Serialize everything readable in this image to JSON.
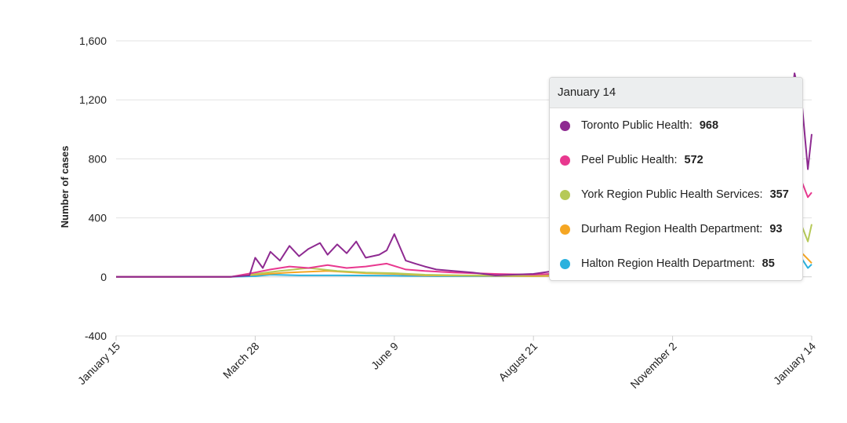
{
  "chart_data": {
    "type": "line",
    "ylabel": "Number of cases",
    "xlabel": "",
    "ylim": [
      -400,
      1600
    ],
    "yticks": [
      1600,
      1200,
      800,
      400,
      0,
      -400
    ],
    "ytick_labels": [
      "1,600",
      "1,200",
      "800",
      "400",
      "0",
      "-400"
    ],
    "xtick_labels": [
      "January 15",
      "March 28",
      "June 9",
      "August 21",
      "November 2",
      "January 14"
    ],
    "grid": true,
    "legend": "none",
    "series": [
      {
        "name": "Toronto Public Health",
        "color": "#8e2a91",
        "x": [
          "2020-01-15",
          "2020-03-15",
          "2020-03-25",
          "2020-03-28",
          "2020-04-01",
          "2020-04-05",
          "2020-04-10",
          "2020-04-15",
          "2020-04-20",
          "2020-04-25",
          "2020-05-01",
          "2020-05-05",
          "2020-05-10",
          "2020-05-15",
          "2020-05-20",
          "2020-05-25",
          "2020-06-01",
          "2020-06-05",
          "2020-06-09",
          "2020-06-15",
          "2020-06-20",
          "2020-06-25",
          "2020-07-01",
          "2020-07-10",
          "2020-07-20",
          "2020-08-01",
          "2020-08-10",
          "2020-08-21",
          "2020-09-01",
          "2020-09-15",
          "2020-10-01",
          "2020-10-15",
          "2020-11-01",
          "2020-11-15",
          "2020-12-01",
          "2020-12-15",
          "2021-01-01",
          "2021-01-05",
          "2021-01-09",
          "2021-01-12",
          "2021-01-14"
        ],
        "values": [
          0,
          0,
          10,
          130,
          60,
          170,
          110,
          210,
          140,
          190,
          230,
          150,
          220,
          160,
          240,
          130,
          150,
          180,
          290,
          110,
          90,
          70,
          50,
          40,
          30,
          10,
          15,
          20,
          40,
          80,
          200,
          250,
          260,
          400,
          450,
          600,
          950,
          1380,
          1160,
          730,
          968
        ]
      },
      {
        "name": "Peel Public Health",
        "color": "#e8388f",
        "x": [
          "2020-01-15",
          "2020-03-15",
          "2020-03-28",
          "2020-04-05",
          "2020-04-15",
          "2020-04-25",
          "2020-05-05",
          "2020-05-15",
          "2020-05-25",
          "2020-06-05",
          "2020-06-15",
          "2020-06-25",
          "2020-07-10",
          "2020-08-01",
          "2020-08-21",
          "2020-09-15",
          "2020-10-15",
          "2020-11-15",
          "2020-12-15",
          "2021-01-01",
          "2021-01-09",
          "2021-01-12",
          "2021-01-14"
        ],
        "values": [
          0,
          0,
          30,
          50,
          70,
          60,
          80,
          60,
          70,
          90,
          50,
          40,
          30,
          20,
          15,
          30,
          120,
          300,
          400,
          520,
          640,
          540,
          572
        ]
      },
      {
        "name": "York Region Public Health Services",
        "color": "#b6c957",
        "x": [
          "2020-01-15",
          "2020-03-15",
          "2020-03-28",
          "2020-04-10",
          "2020-04-25",
          "2020-05-10",
          "2020-05-25",
          "2020-06-09",
          "2020-06-25",
          "2020-07-15",
          "2020-08-21",
          "2020-09-15",
          "2020-10-15",
          "2020-11-15",
          "2020-12-15",
          "2021-01-01",
          "2021-01-09",
          "2021-01-12",
          "2021-01-14"
        ],
        "values": [
          0,
          0,
          20,
          40,
          60,
          40,
          30,
          25,
          15,
          10,
          10,
          20,
          60,
          120,
          180,
          250,
          340,
          240,
          357
        ]
      },
      {
        "name": "Durham Region Health Department",
        "color": "#f5a623",
        "x": [
          "2020-01-15",
          "2020-03-15",
          "2020-03-28",
          "2020-04-15",
          "2020-05-05",
          "2020-05-25",
          "2020-06-09",
          "2020-06-25",
          "2020-07-20",
          "2020-08-21",
          "2020-09-15",
          "2020-10-15",
          "2020-11-15",
          "2020-12-15",
          "2021-01-01",
          "2021-01-09",
          "2021-01-12",
          "2021-01-14"
        ],
        "values": [
          0,
          0,
          15,
          30,
          40,
          25,
          20,
          10,
          8,
          5,
          10,
          25,
          45,
          70,
          110,
          160,
          120,
          93
        ]
      },
      {
        "name": "Halton Region Health Department",
        "color": "#2ab1de",
        "x": [
          "2020-01-15",
          "2020-03-15",
          "2020-03-28",
          "2020-04-05",
          "2020-04-20",
          "2020-05-10",
          "2020-06-09",
          "2020-07-01",
          "2020-08-01",
          "2020-08-21",
          "2020-09-15",
          "2020-10-15",
          "2020-11-15",
          "2020-12-15",
          "2021-01-01",
          "2021-01-09",
          "2021-01-12",
          "2021-01-14"
        ],
        "values": [
          0,
          0,
          5,
          15,
          10,
          10,
          8,
          5,
          5,
          5,
          10,
          20,
          40,
          60,
          80,
          120,
          60,
          85
        ]
      }
    ]
  },
  "tooltip": {
    "date": "January 14",
    "rows": [
      {
        "label": "Toronto Public Health:",
        "value": "968",
        "color": "#8e2a91"
      },
      {
        "label": "Peel Public Health:",
        "value": "572",
        "color": "#e8388f"
      },
      {
        "label": "York Region Public Health Services:",
        "value": "357",
        "color": "#b6c957"
      },
      {
        "label": "Durham Region Health Department:",
        "value": "93",
        "color": "#f5a623"
      },
      {
        "label": "Halton Region Health Department:",
        "value": "85",
        "color": "#2ab1de"
      }
    ]
  }
}
